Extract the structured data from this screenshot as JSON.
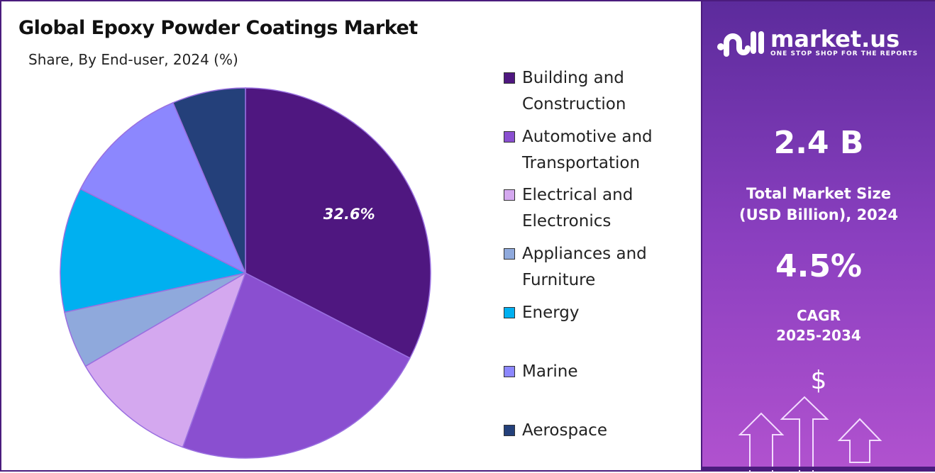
{
  "title": "Global Epoxy Powder Coatings Market",
  "subtitle": "Share, By End-user, 2024 (%)",
  "chart_data": {
    "type": "pie",
    "title": "Global Epoxy Powder Coatings Market",
    "subtitle": "Share, By End-user, 2024 (%)",
    "categories": [
      "Building and Construction",
      "Automotive and Transportation",
      "Electrical and Electronics",
      "Appliances and Furniture",
      "Energy",
      "Marine",
      "Aerospace"
    ],
    "values": [
      32.6,
      22.9,
      11.1,
      5.0,
      10.9,
      11.1,
      6.4
    ],
    "colors": [
      "#4f1780",
      "#8a4fd0",
      "#d4a8ef",
      "#8fa9dc",
      "#00b0f0",
      "#8c87fe",
      "#24407a"
    ],
    "data_labels": [
      "32.6%",
      "",
      "",
      "",
      "",
      "",
      ""
    ],
    "legend_position": "right",
    "start_angle": "top, clockwise"
  },
  "legend": [
    {
      "line1": "Building and",
      "line2": "Construction"
    },
    {
      "line1": "Automotive and",
      "line2": "Transportation"
    },
    {
      "line1": "Electrical and",
      "line2": "Electronics"
    },
    {
      "line1": "Appliances and",
      "line2": "Furniture"
    },
    {
      "line1": "Energy",
      "line2": ""
    },
    {
      "line1": "Marine",
      "line2": ""
    },
    {
      "line1": "Aerospace",
      "line2": ""
    }
  ],
  "panel": {
    "logo_name": "market.us",
    "logo_tagline": "ONE STOP SHOP FOR THE REPORTS",
    "market_size": "2.4 B",
    "market_size_label1": "Total Market Size",
    "market_size_label2": "(USD Billion), 2024",
    "cagr": "4.5%",
    "cagr_label1": "CAGR",
    "cagr_label2": "2025-2034",
    "currency_symbol": "$"
  }
}
